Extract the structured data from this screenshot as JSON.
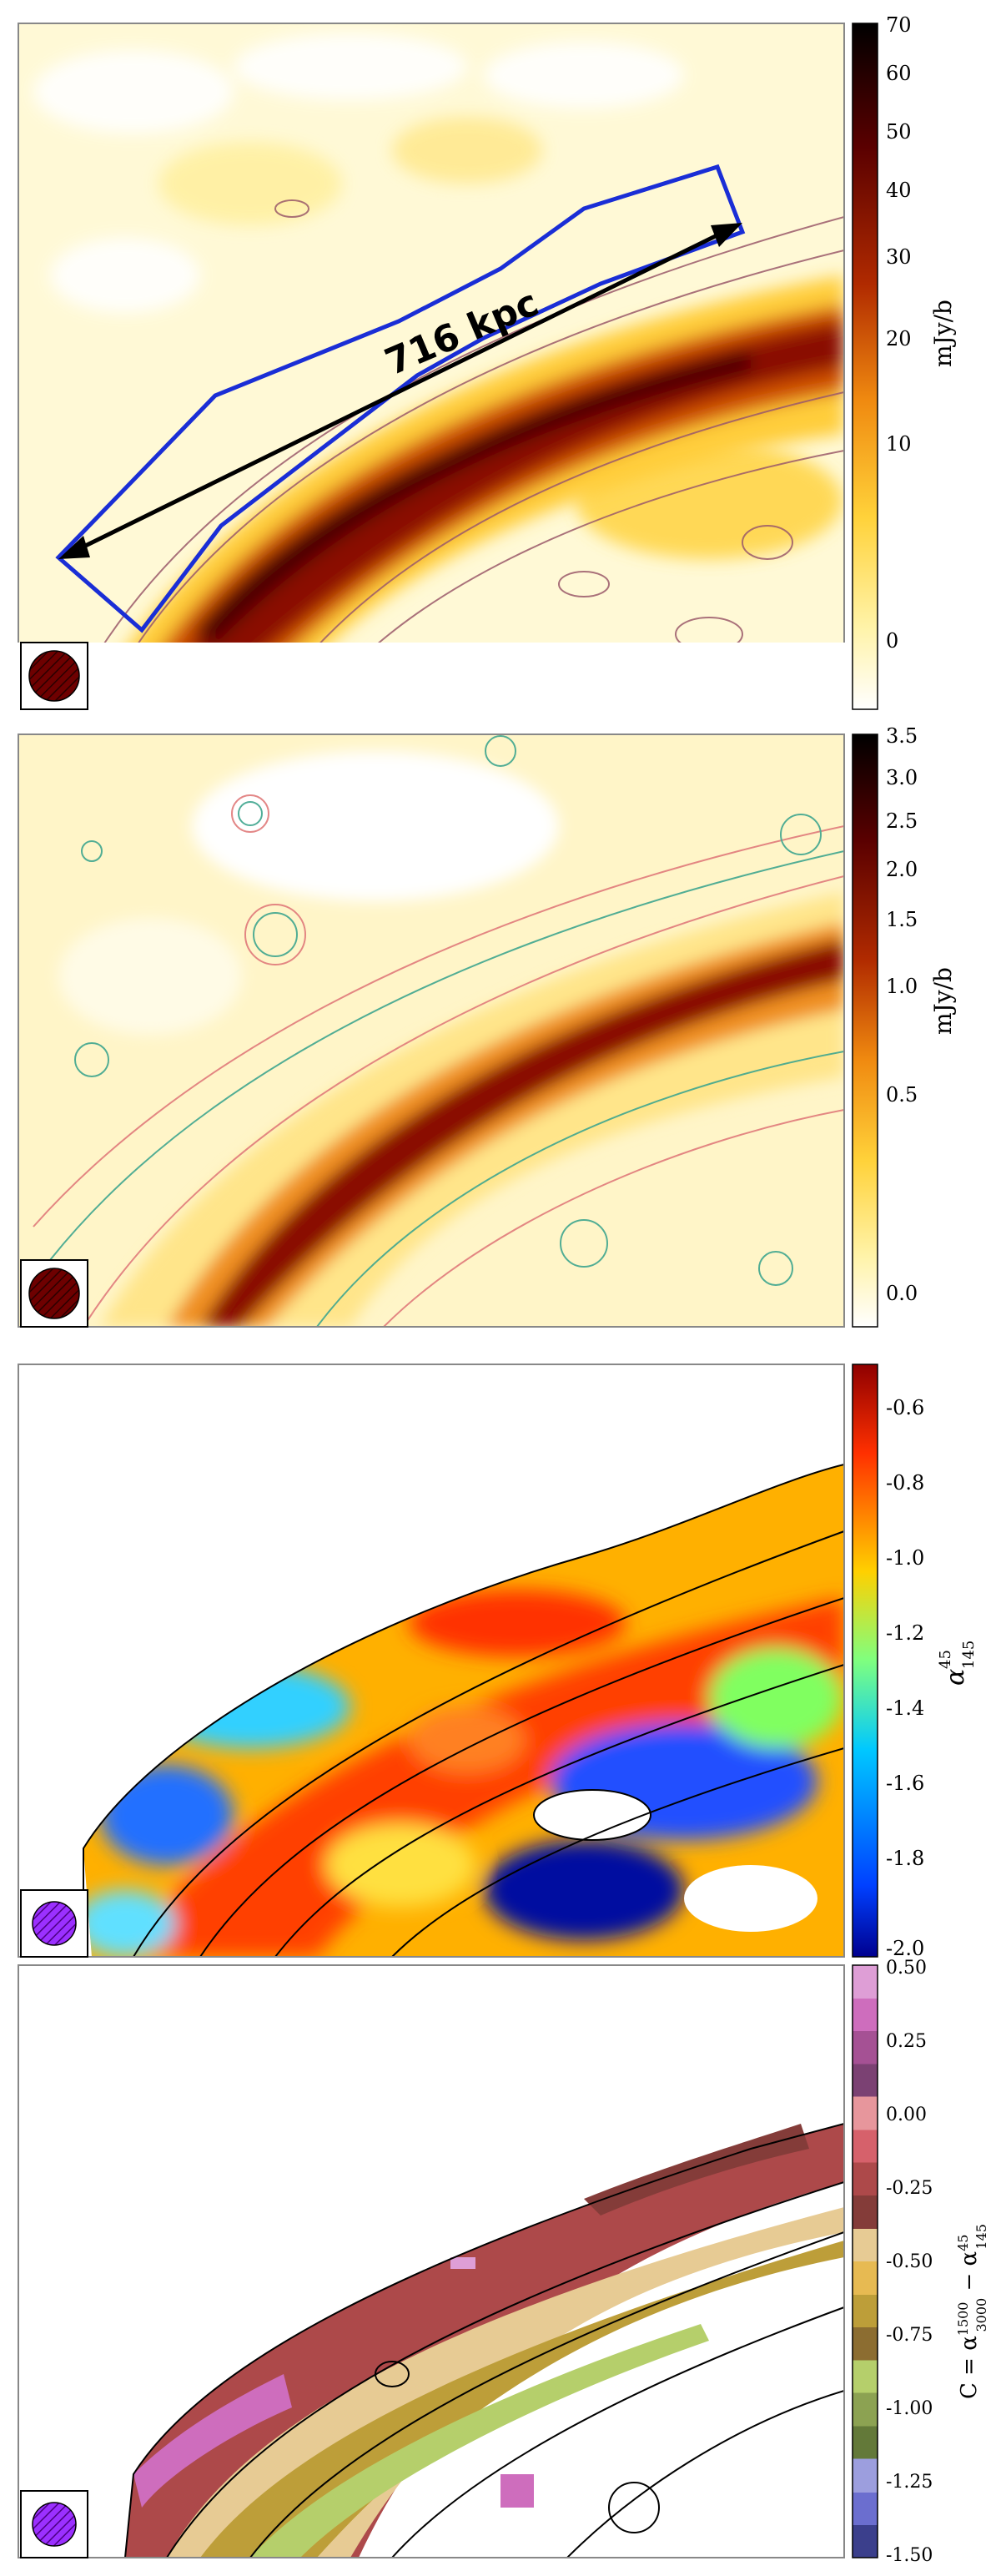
{
  "panels": [
    {
      "id": "p1",
      "colorbar": {
        "label": "mJy/b",
        "ticks": [
          "70",
          "60",
          "50",
          "40",
          "30",
          "20",
          "10",
          "0"
        ],
        "colormap": "afmhot-r",
        "stops": [
          "#ffffff",
          "#fff3a8",
          "#ffd23a",
          "#f08a10",
          "#b02a00",
          "#5a0000",
          "#000000"
        ]
      },
      "annotation": {
        "text": "716 kpc"
      },
      "region_color": "#1a2ed6",
      "arrow_color": "#000000",
      "contour_color": "#9b5a6a",
      "beam_color": "#6e0000"
    },
    {
      "id": "p2",
      "colorbar": {
        "label": "mJy/b",
        "ticks": [
          "3.5",
          "3.0",
          "2.5",
          "2.0",
          "1.5",
          "1.0",
          "0.5",
          "0.0"
        ],
        "colormap": "afmhot-r",
        "stops": [
          "#ffffff",
          "#fff3a8",
          "#ffd23a",
          "#f08a10",
          "#b02a00",
          "#5a0000",
          "#000000"
        ]
      },
      "contour_colors": [
        "#3fa68f",
        "#e07b7b"
      ],
      "beam_color": "#6e0000"
    },
    {
      "id": "p3",
      "colorbar": {
        "label": "α",
        "label_sup": "45",
        "label_sub": "145",
        "ticks": [
          "-0.6",
          "-0.8",
          "-1.0",
          "-1.2",
          "-1.4",
          "-1.6",
          "-1.8",
          "-2.0"
        ],
        "colormap": "jet",
        "stops": [
          "#00008f",
          "#0040ff",
          "#00c8ff",
          "#7fff7f",
          "#ffd000",
          "#ff3000",
          "#8f0000"
        ]
      },
      "contour_color": "#000000",
      "beam_color": "#8a2be2"
    },
    {
      "id": "p4",
      "colorbar": {
        "label": "C = α",
        "label_sup1": "1500",
        "label_sub1": "3000",
        "label_mid": " − α",
        "label_sup2": "45",
        "label_sub2": "145",
        "ticks": [
          "0.50",
          "0.25",
          "0.00",
          "-0.25",
          "-0.50",
          "-0.75",
          "-1.00",
          "-1.25",
          "-1.50"
        ],
        "colormap": "tab20b-like",
        "bands": [
          "#3b3f8c",
          "#6b6ecf",
          "#9c9ede",
          "#637939",
          "#8ca252",
          "#b5cf6b",
          "#8c6d31",
          "#bd9e39",
          "#e7ba52",
          "#e7cb94",
          "#843c39",
          "#ad494a",
          "#d6616b",
          "#e7969c",
          "#7b4173",
          "#a55194",
          "#ce6dbd",
          "#de9ed6"
        ]
      },
      "contour_color": "#000000",
      "beam_color": "#8a2be2"
    }
  ]
}
